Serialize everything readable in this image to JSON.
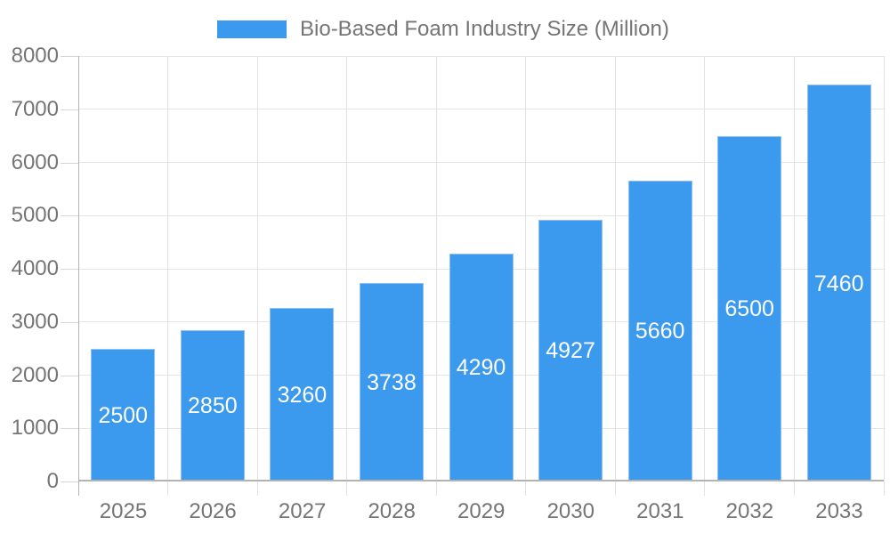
{
  "legend": {
    "label": "Bio-Based Foam Industry Size (Million)"
  },
  "colors": {
    "bar_fill": "#3b99ee",
    "bar_border": "#8ec0f4",
    "value_label": "#ffffff",
    "axis_label": "#757575",
    "gridline": "#e6e6e6",
    "axis_line": "#b3b3b3",
    "background": "#ffffff"
  },
  "chart_data": {
    "type": "bar",
    "title": "Bio-Based Foam Industry Size (Million)",
    "series_name": "Bio-Based Foam Industry Size (Million)",
    "categories": [
      "2025",
      "2026",
      "2027",
      "2028",
      "2029",
      "2030",
      "2031",
      "2032",
      "2033"
    ],
    "values": [
      2500,
      2850,
      3260,
      3738,
      4290,
      4927,
      5660,
      6500,
      7460
    ],
    "xlabel": "",
    "ylabel": "",
    "ylim": [
      0,
      8000
    ],
    "y_ticks": [
      0,
      1000,
      2000,
      3000,
      4000,
      5000,
      6000,
      7000,
      8000
    ],
    "grid": true,
    "legend_position": "top",
    "value_label_position": "inside-center"
  }
}
